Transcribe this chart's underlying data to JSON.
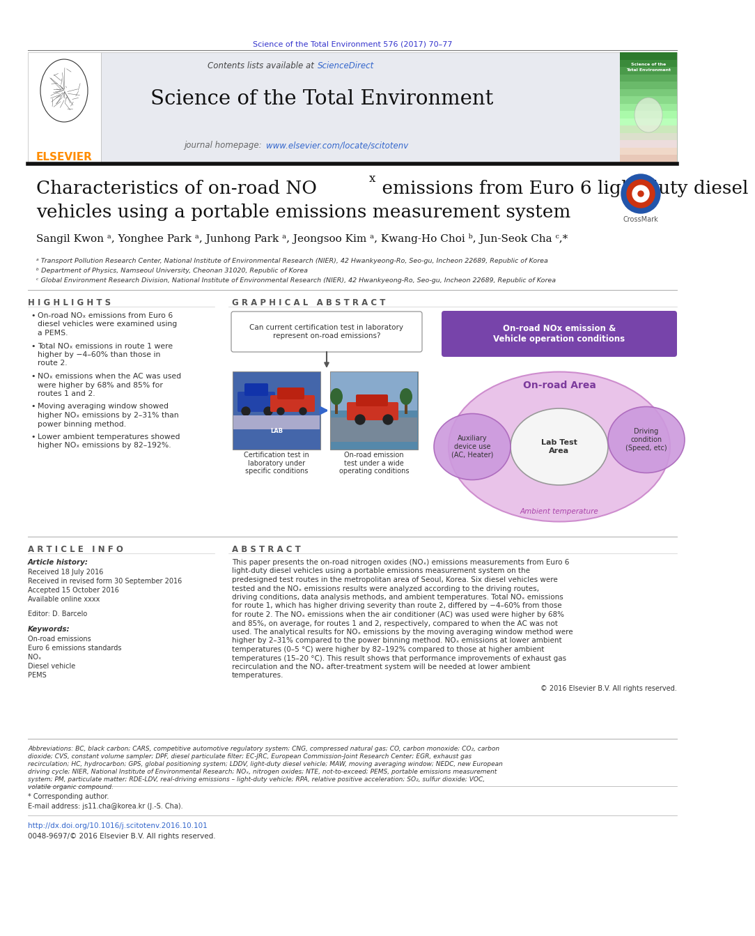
{
  "background_color": "#ffffff",
  "top_journal_ref": "Science of the Total Environment 576 (2017) 70–77",
  "top_journal_ref_color": "#3333cc",
  "header_bg": "#e8eaf0",
  "header_contents": "Contents lists available at",
  "header_sciencedirect": "ScienceDirect",
  "header_sciencedirect_color": "#3366cc",
  "journal_title": "Science of the Total Environment",
  "journal_homepage_text": "journal homepage:",
  "journal_homepage_url": "www.elsevier.com/locate/scitotenv",
  "journal_homepage_url_color": "#3366cc",
  "elsevier_color": "#FF8C00",
  "article_title_line1": "Characteristics of on-road NO",
  "article_title_sub": "x",
  "article_title_line1b": " emissions from Euro 6 light-duty diesel",
  "article_title_line2": "vehicles using a portable emissions measurement system",
  "authors": "Sangil Kwon ᵃ, Yonghee Park ᵃ, Junhong Park ᵃ, Jeongsoo Kim ᵃ, Kwang-Ho Choi ᵇ, Jun-Seok Cha ᶜ,*",
  "affil_a": "ᵃ Transport Pollution Research Center, National Institute of Environmental Research (NIER), 42 Hwankyeong-Ro, Seo-gu, Incheon 22689, Republic of Korea",
  "affil_b": "ᵇ Department of Physics, Namseoul University, Cheonan 31020, Republic of Korea",
  "affil_c": "ᶜ Global Environment Research Division, National Institute of Environmental Research (NIER), 42 Hwankyeong-Ro, Seo-gu, Incheon 22689, Republic of Korea",
  "highlights_title": "H I G H L I G H T S",
  "highlights": [
    "On-road NOₓ emissions from Euro 6 diesel vehicles were examined using a PEMS.",
    "Total NOₓ emissions in route 1 were higher by −4–60% than those in route 2.",
    "NOₓ emissions when the AC was used were higher by 68% and 85% for routes 1 and 2.",
    "Moving averaging window showed higher NOₓ emissions by 2–31% than power binning method.",
    "Lower ambient temperatures showed higher NOₓ emissions by 82–192%."
  ],
  "graphical_abstract_title": "G R A P H I C A L   A B S T R A C T",
  "graphical_question": "Can current certification test in laboratory\nrepresent on-road emissions?",
  "lab_test_label": "Certification test in\nlaboratory under\nspecific conditions",
  "onroad_label": "On-road emission\ntest under a wide\noperating conditions",
  "onroad_nox_label": "On-road NOx emission &\nVehicle operation conditions",
  "onroad_area_label": "On-road Area",
  "lab_test_area_label": "Lab Test\nArea",
  "aux_device_label": "Auxiliary\ndevice use\n(AC, Heater)",
  "driving_cond_label": "Driving\ncondition\n(Speed, etc)",
  "ambient_temp_label": "Ambient temperature",
  "article_info_title": "A R T I C L E   I N F O",
  "article_history_label": "Article history:",
  "received_label": "Received 18 July 2016",
  "revised_label": "Received in revised form 30 September 2016",
  "accepted_label": "Accepted 15 October 2016",
  "available_label": "Available online xxxx",
  "editor_label": "Editor: D. Barcelo",
  "keywords_label": "Keywords:",
  "keywords": "On-road emissions\nEuro 6 emissions standards\nNOₓ\nDiesel vehicle\nPEMS",
  "abstract_title": "A B S T R A C T",
  "abstract_text": "This paper presents the on-road nitrogen oxides (NOₓ) emissions measurements from Euro 6 light-duty diesel vehicles using a portable emissions measurement system on the predesigned test routes in the metropolitan area of Seoul, Korea. Six diesel vehicles were tested and the NOₓ emissions results were analyzed according to the driving routes, driving conditions, data analysis methods, and ambient temperatures. Total NOₓ emissions for route 1, which has higher driving severity than route 2, differed by −4–60% from those for route 2. The NOₓ emissions when the air conditioner (AC) was used were higher by 68% and 85%, on average, for routes 1 and 2, respectively, compared to when the AC was not used. The analytical results for NOₓ emissions by the moving averaging window method were higher by 2–31% compared to the power binning method. NOₓ emissions at lower ambient temperatures (0–5 °C) were higher by 82–192% compared to those at higher ambient temperatures (15–20 °C). This result shows that performance improvements of exhaust gas recirculation and the NOₓ after-treatment system will be needed at lower ambient temperatures.",
  "copyright_text": "© 2016 Elsevier B.V. All rights reserved.",
  "abbreviations_text": "Abbreviations: BC, black carbon; CARS, competitive automotive regulatory system; CNG, compressed natural gas; CO, carbon monoxide; CO₂, carbon dioxide; CVS, constant volume sampler; DPF, diesel particulate filter; EC-JRC, European Commission-Joint Research Center; EGR, exhaust gas recirculation; HC, hydrocarbon; GPS, global positioning system; LDDV, light-duty diesel vehicle; MAW, moving averaging window; NEDC, new European driving cycle; NIER, National Institute of Environmental Research; NOₓ, nitrogen oxides; NTE, not-to-exceed; PEMS, portable emissions measurement system; PM, particulate matter; RDE-LDV, real-driving emissions – light-duty vehicle; RPA, relative positive acceleration; SO₂, sulfur dioxide; VOC, volatile organic compound.",
  "corresponding_note": "* Corresponding author.",
  "email_label": "E-mail address:",
  "email_text": "js11.cha@korea.kr (J.-S. Cha).",
  "doi_text": "http://dx.doi.org/10.1016/j.scitotenv.2016.10.101",
  "doi_color": "#3366cc",
  "issn_text": "0048-9697/© 2016 Elsevier B.V. All rights reserved."
}
